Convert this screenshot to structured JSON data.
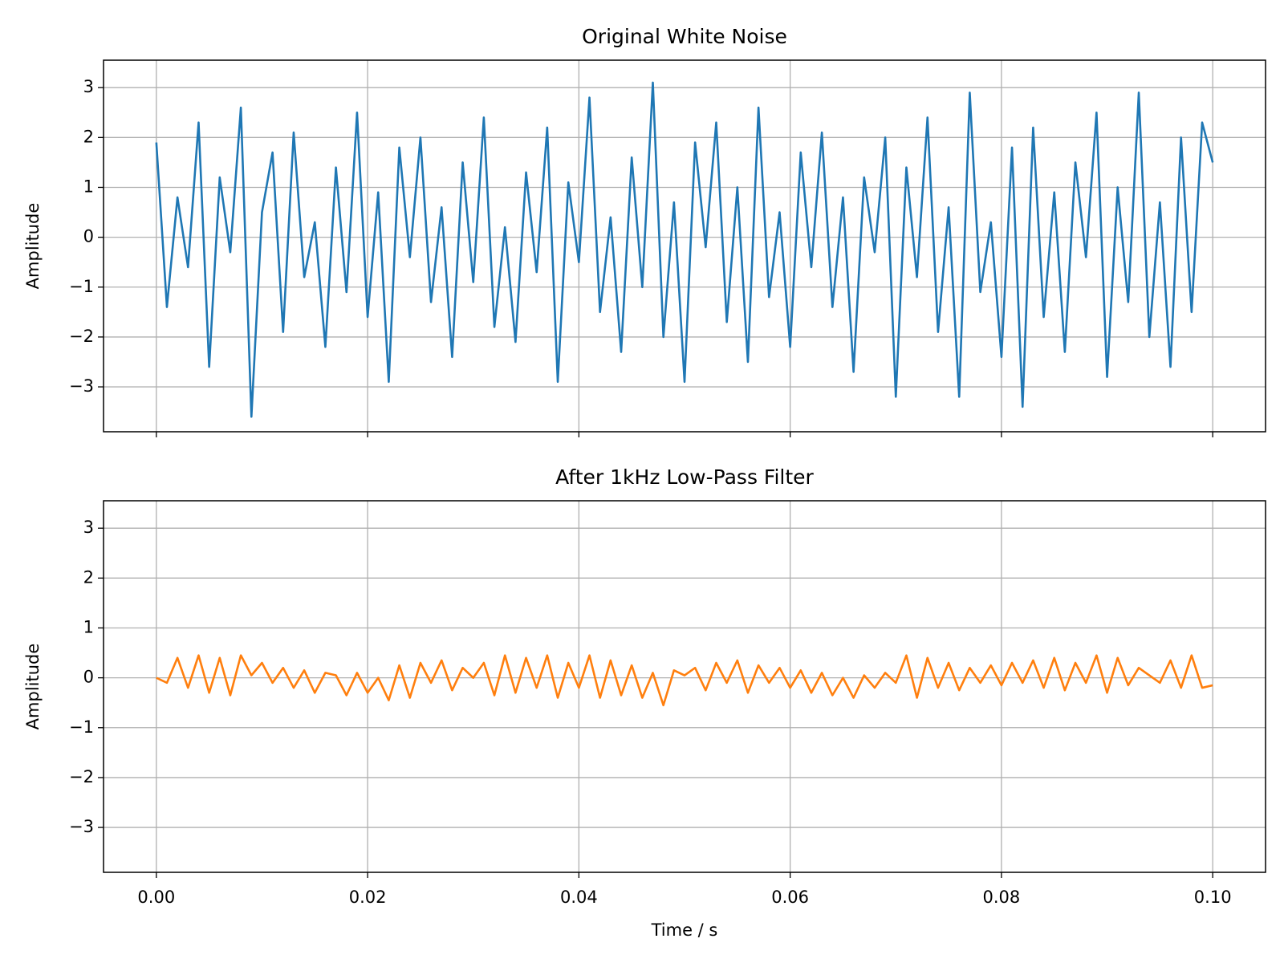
{
  "chart_data": [
    {
      "type": "line",
      "title": "Original White Noise",
      "ylabel": "Amplitude",
      "color": "#1f77b4",
      "grid": true,
      "xlim": [
        -0.005,
        0.105
      ],
      "ylim": [
        -3.9,
        3.55
      ],
      "xticks": [
        0,
        0.02,
        0.04,
        0.06,
        0.08,
        0.1
      ],
      "yticks": [
        {
          "value": -3,
          "label": "−3"
        },
        {
          "value": -2,
          "label": "−2"
        },
        {
          "value": -1,
          "label": "−1"
        },
        0,
        1,
        2,
        3
      ],
      "x": [
        0,
        0.001,
        0.002,
        0.003,
        0.004,
        0.005,
        0.006,
        0.007,
        0.008,
        0.009,
        0.01,
        0.011,
        0.012,
        0.013,
        0.014,
        0.015,
        0.016,
        0.017,
        0.018,
        0.019,
        0.02,
        0.021,
        0.022,
        0.023,
        0.024,
        0.025,
        0.026,
        0.027,
        0.028,
        0.029,
        0.03,
        0.031,
        0.032,
        0.033,
        0.034,
        0.035,
        0.036,
        0.037,
        0.038,
        0.039,
        0.04,
        0.041,
        0.042,
        0.043,
        0.044,
        0.045,
        0.046,
        0.047,
        0.048,
        0.049,
        0.05,
        0.051,
        0.052,
        0.053,
        0.054,
        0.055,
        0.056,
        0.057,
        0.058,
        0.059,
        0.06,
        0.061,
        0.062,
        0.063,
        0.064,
        0.065,
        0.066,
        0.067,
        0.068,
        0.069,
        0.07,
        0.071,
        0.072,
        0.073,
        0.074,
        0.075,
        0.076,
        0.077,
        0.078,
        0.079,
        0.08,
        0.081,
        0.082,
        0.083,
        0.084,
        0.085,
        0.086,
        0.087,
        0.088,
        0.089,
        0.09,
        0.091,
        0.092,
        0.093,
        0.094,
        0.095,
        0.096,
        0.097,
        0.098,
        0.099,
        0.1
      ],
      "values": [
        1.9,
        -1.4,
        0.8,
        -0.6,
        2.3,
        -2.6,
        1.2,
        -0.3,
        2.6,
        -3.6,
        0.5,
        1.7,
        -1.9,
        2.1,
        -0.8,
        0.3,
        -2.2,
        1.4,
        -1.1,
        2.5,
        -1.6,
        0.9,
        -2.9,
        1.8,
        -0.4,
        2.0,
        -1.3,
        0.6,
        -2.4,
        1.5,
        -0.9,
        2.4,
        -1.8,
        0.2,
        -2.1,
        1.3,
        -0.7,
        2.2,
        -2.9,
        1.1,
        -0.5,
        2.8,
        -1.5,
        0.4,
        -2.3,
        1.6,
        -1.0,
        3.1,
        -2.0,
        0.7,
        -2.9,
        1.9,
        -0.2,
        2.3,
        -1.7,
        1.0,
        -2.5,
        2.6,
        -1.2,
        0.5,
        -2.2,
        1.7,
        -0.6,
        2.1,
        -1.4,
        0.8,
        -2.7,
        1.2,
        -0.3,
        2.0,
        -3.2,
        1.4,
        -0.8,
        2.4,
        -1.9,
        0.6,
        -3.2,
        2.9,
        -1.1,
        0.3,
        -2.4,
        1.8,
        -3.4,
        2.2,
        -1.6,
        0.9,
        -2.3,
        1.5,
        -0.4,
        2.5,
        -2.8,
        1.0,
        -1.3,
        2.9,
        -2.0,
        0.7,
        -2.6,
        2.0,
        -1.5,
        2.3,
        1.5
      ]
    },
    {
      "type": "line",
      "title": "After 1kHz Low-Pass Filter",
      "ylabel": "Amplitude",
      "xlabel": "Time / s",
      "color": "#ff7f0e",
      "grid": true,
      "xlim": [
        -0.005,
        0.105
      ],
      "ylim": [
        -3.9,
        3.55
      ],
      "xticks": [
        {
          "value": 0,
          "label": "0.00"
        },
        {
          "value": 0.02,
          "label": "0.02"
        },
        {
          "value": 0.04,
          "label": "0.04"
        },
        {
          "value": 0.06,
          "label": "0.06"
        },
        {
          "value": 0.08,
          "label": "0.08"
        },
        {
          "value": 0.1,
          "label": "0.10"
        }
      ],
      "yticks": [
        {
          "value": -3,
          "label": "−3"
        },
        {
          "value": -2,
          "label": "−2"
        },
        {
          "value": -1,
          "label": "−1"
        },
        0,
        1,
        2,
        3
      ],
      "x": [
        0,
        0.001,
        0.002,
        0.003,
        0.004,
        0.005,
        0.006,
        0.007,
        0.008,
        0.009,
        0.01,
        0.011,
        0.012,
        0.013,
        0.014,
        0.015,
        0.016,
        0.017,
        0.018,
        0.019,
        0.02,
        0.021,
        0.022,
        0.023,
        0.024,
        0.025,
        0.026,
        0.027,
        0.028,
        0.029,
        0.03,
        0.031,
        0.032,
        0.033,
        0.034,
        0.035,
        0.036,
        0.037,
        0.038,
        0.039,
        0.04,
        0.041,
        0.042,
        0.043,
        0.044,
        0.045,
        0.046,
        0.047,
        0.048,
        0.049,
        0.05,
        0.051,
        0.052,
        0.053,
        0.054,
        0.055,
        0.056,
        0.057,
        0.058,
        0.059,
        0.06,
        0.061,
        0.062,
        0.063,
        0.064,
        0.065,
        0.066,
        0.067,
        0.068,
        0.069,
        0.07,
        0.071,
        0.072,
        0.073,
        0.074,
        0.075,
        0.076,
        0.077,
        0.078,
        0.079,
        0.08,
        0.081,
        0.082,
        0.083,
        0.084,
        0.085,
        0.086,
        0.087,
        0.088,
        0.089,
        0.09,
        0.091,
        0.092,
        0.093,
        0.094,
        0.095,
        0.096,
        0.097,
        0.098,
        0.099,
        0.1
      ],
      "values": [
        0,
        -0.1,
        0.4,
        -0.2,
        0.45,
        -0.3,
        0.4,
        -0.35,
        0.45,
        0.05,
        0.3,
        -0.1,
        0.2,
        -0.2,
        0.15,
        -0.3,
        0.1,
        0.05,
        -0.35,
        0.1,
        -0.3,
        0.0,
        -0.45,
        0.25,
        -0.4,
        0.3,
        -0.1,
        0.35,
        -0.25,
        0.2,
        0.0,
        0.3,
        -0.35,
        0.45,
        -0.3,
        0.4,
        -0.2,
        0.45,
        -0.4,
        0.3,
        -0.2,
        0.45,
        -0.4,
        0.35,
        -0.35,
        0.25,
        -0.4,
        0.1,
        -0.55,
        0.15,
        0.05,
        0.2,
        -0.25,
        0.3,
        -0.1,
        0.35,
        -0.3,
        0.25,
        -0.1,
        0.2,
        -0.2,
        0.15,
        -0.3,
        0.1,
        -0.35,
        0.0,
        -0.4,
        0.05,
        -0.2,
        0.1,
        -0.1,
        0.45,
        -0.4,
        0.4,
        -0.2,
        0.3,
        -0.25,
        0.2,
        -0.1,
        0.25,
        -0.15,
        0.3,
        -0.1,
        0.35,
        -0.2,
        0.4,
        -0.25,
        0.3,
        -0.1,
        0.45,
        -0.3,
        0.4,
        -0.15,
        0.2,
        0.05,
        -0.1,
        0.35,
        -0.2,
        0.45,
        -0.2,
        -0.15
      ]
    }
  ]
}
